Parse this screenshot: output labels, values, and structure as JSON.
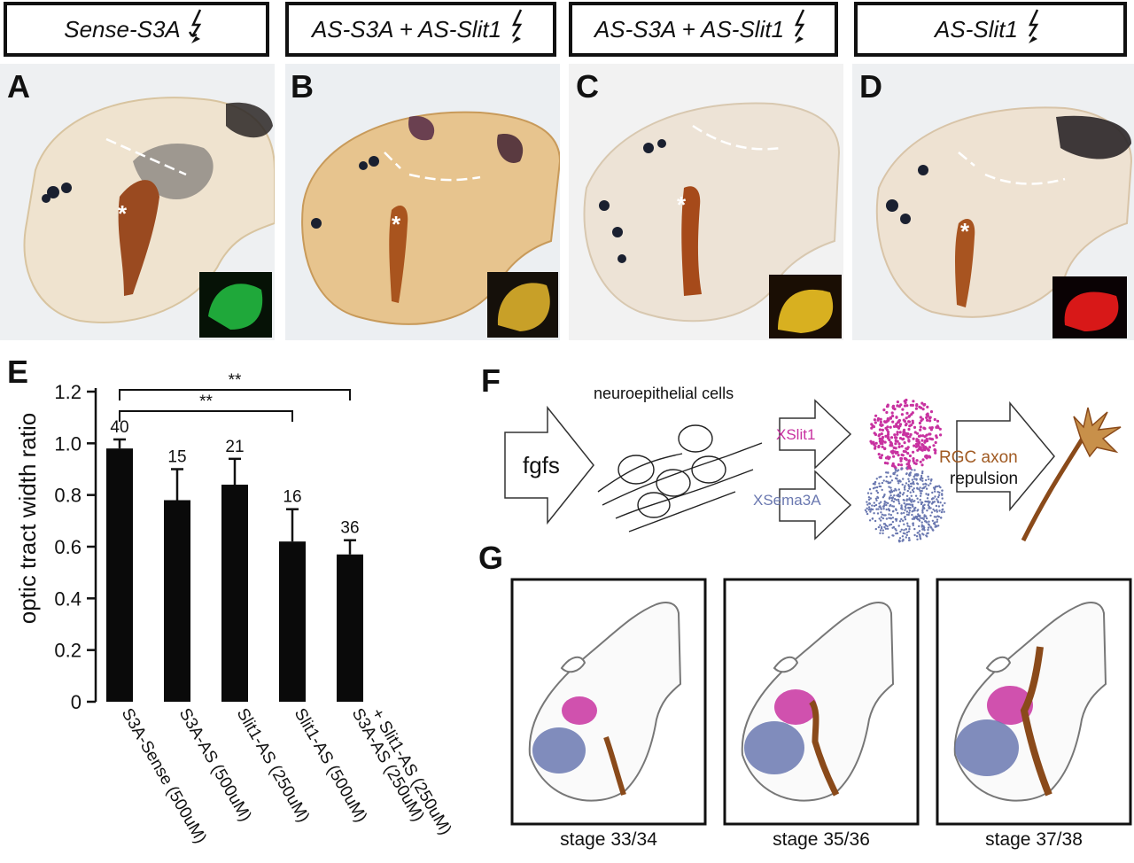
{
  "panels": {
    "A": {
      "letter": "A",
      "condition": "Sense-S3A"
    },
    "B": {
      "letter": "B",
      "condition": "AS-S3A + AS-Slit1"
    },
    "C": {
      "letter": "C",
      "condition": "AS-S3A + AS-Slit1"
    },
    "D": {
      "letter": "D",
      "condition": "AS-Slit1"
    }
  },
  "photo_markers": {
    "asterisk": "*"
  },
  "inset_colors": {
    "A": "#1fa83a",
    "B": "#c8a028",
    "C": "#d8b020",
    "D": "#d81818"
  },
  "panel_E": {
    "letter": "E",
    "significance": [
      "**",
      "**"
    ],
    "chart_data": {
      "type": "bar",
      "ylabel": "optic tract width ratio",
      "ylim": [
        0,
        1.2
      ],
      "yticks": [
        "0",
        "0.2",
        "0.4",
        "0.6",
        "0.8",
        "1.0",
        "1.2"
      ],
      "categories": [
        [
          "S3A-Sense (500uM)"
        ],
        [
          "S3A-AS (500uM)"
        ],
        [
          "Slit1-AS (250uM)"
        ],
        [
          "Slit1-AS (500uM)"
        ],
        [
          "S3A-AS (250uM)",
          "+ Slit1-AS (250uM)"
        ]
      ],
      "values": [
        0.98,
        0.78,
        0.84,
        0.62,
        0.57
      ],
      "errors": [
        0.035,
        0.12,
        0.1,
        0.125,
        0.055
      ],
      "n": [
        "40",
        "15",
        "21",
        "16",
        "36"
      ],
      "bar_color": "#0a0a0a"
    }
  },
  "panel_F": {
    "letter": "F",
    "input": "fgfs",
    "cells": "neuroepithelial cells",
    "slit": "XSlit1",
    "sema": "XSema3A",
    "rgc_axon": "RGC axon",
    "repulsion": "repulsion",
    "colors": {
      "slit": "#c832a0",
      "sema": "#6a78b0",
      "axon": "#8a4a1a",
      "cone": "#c8904a"
    }
  },
  "panel_G": {
    "letter": "G",
    "stages": [
      "stage 33/34",
      "stage 35/36",
      "stage 37/38"
    ]
  }
}
